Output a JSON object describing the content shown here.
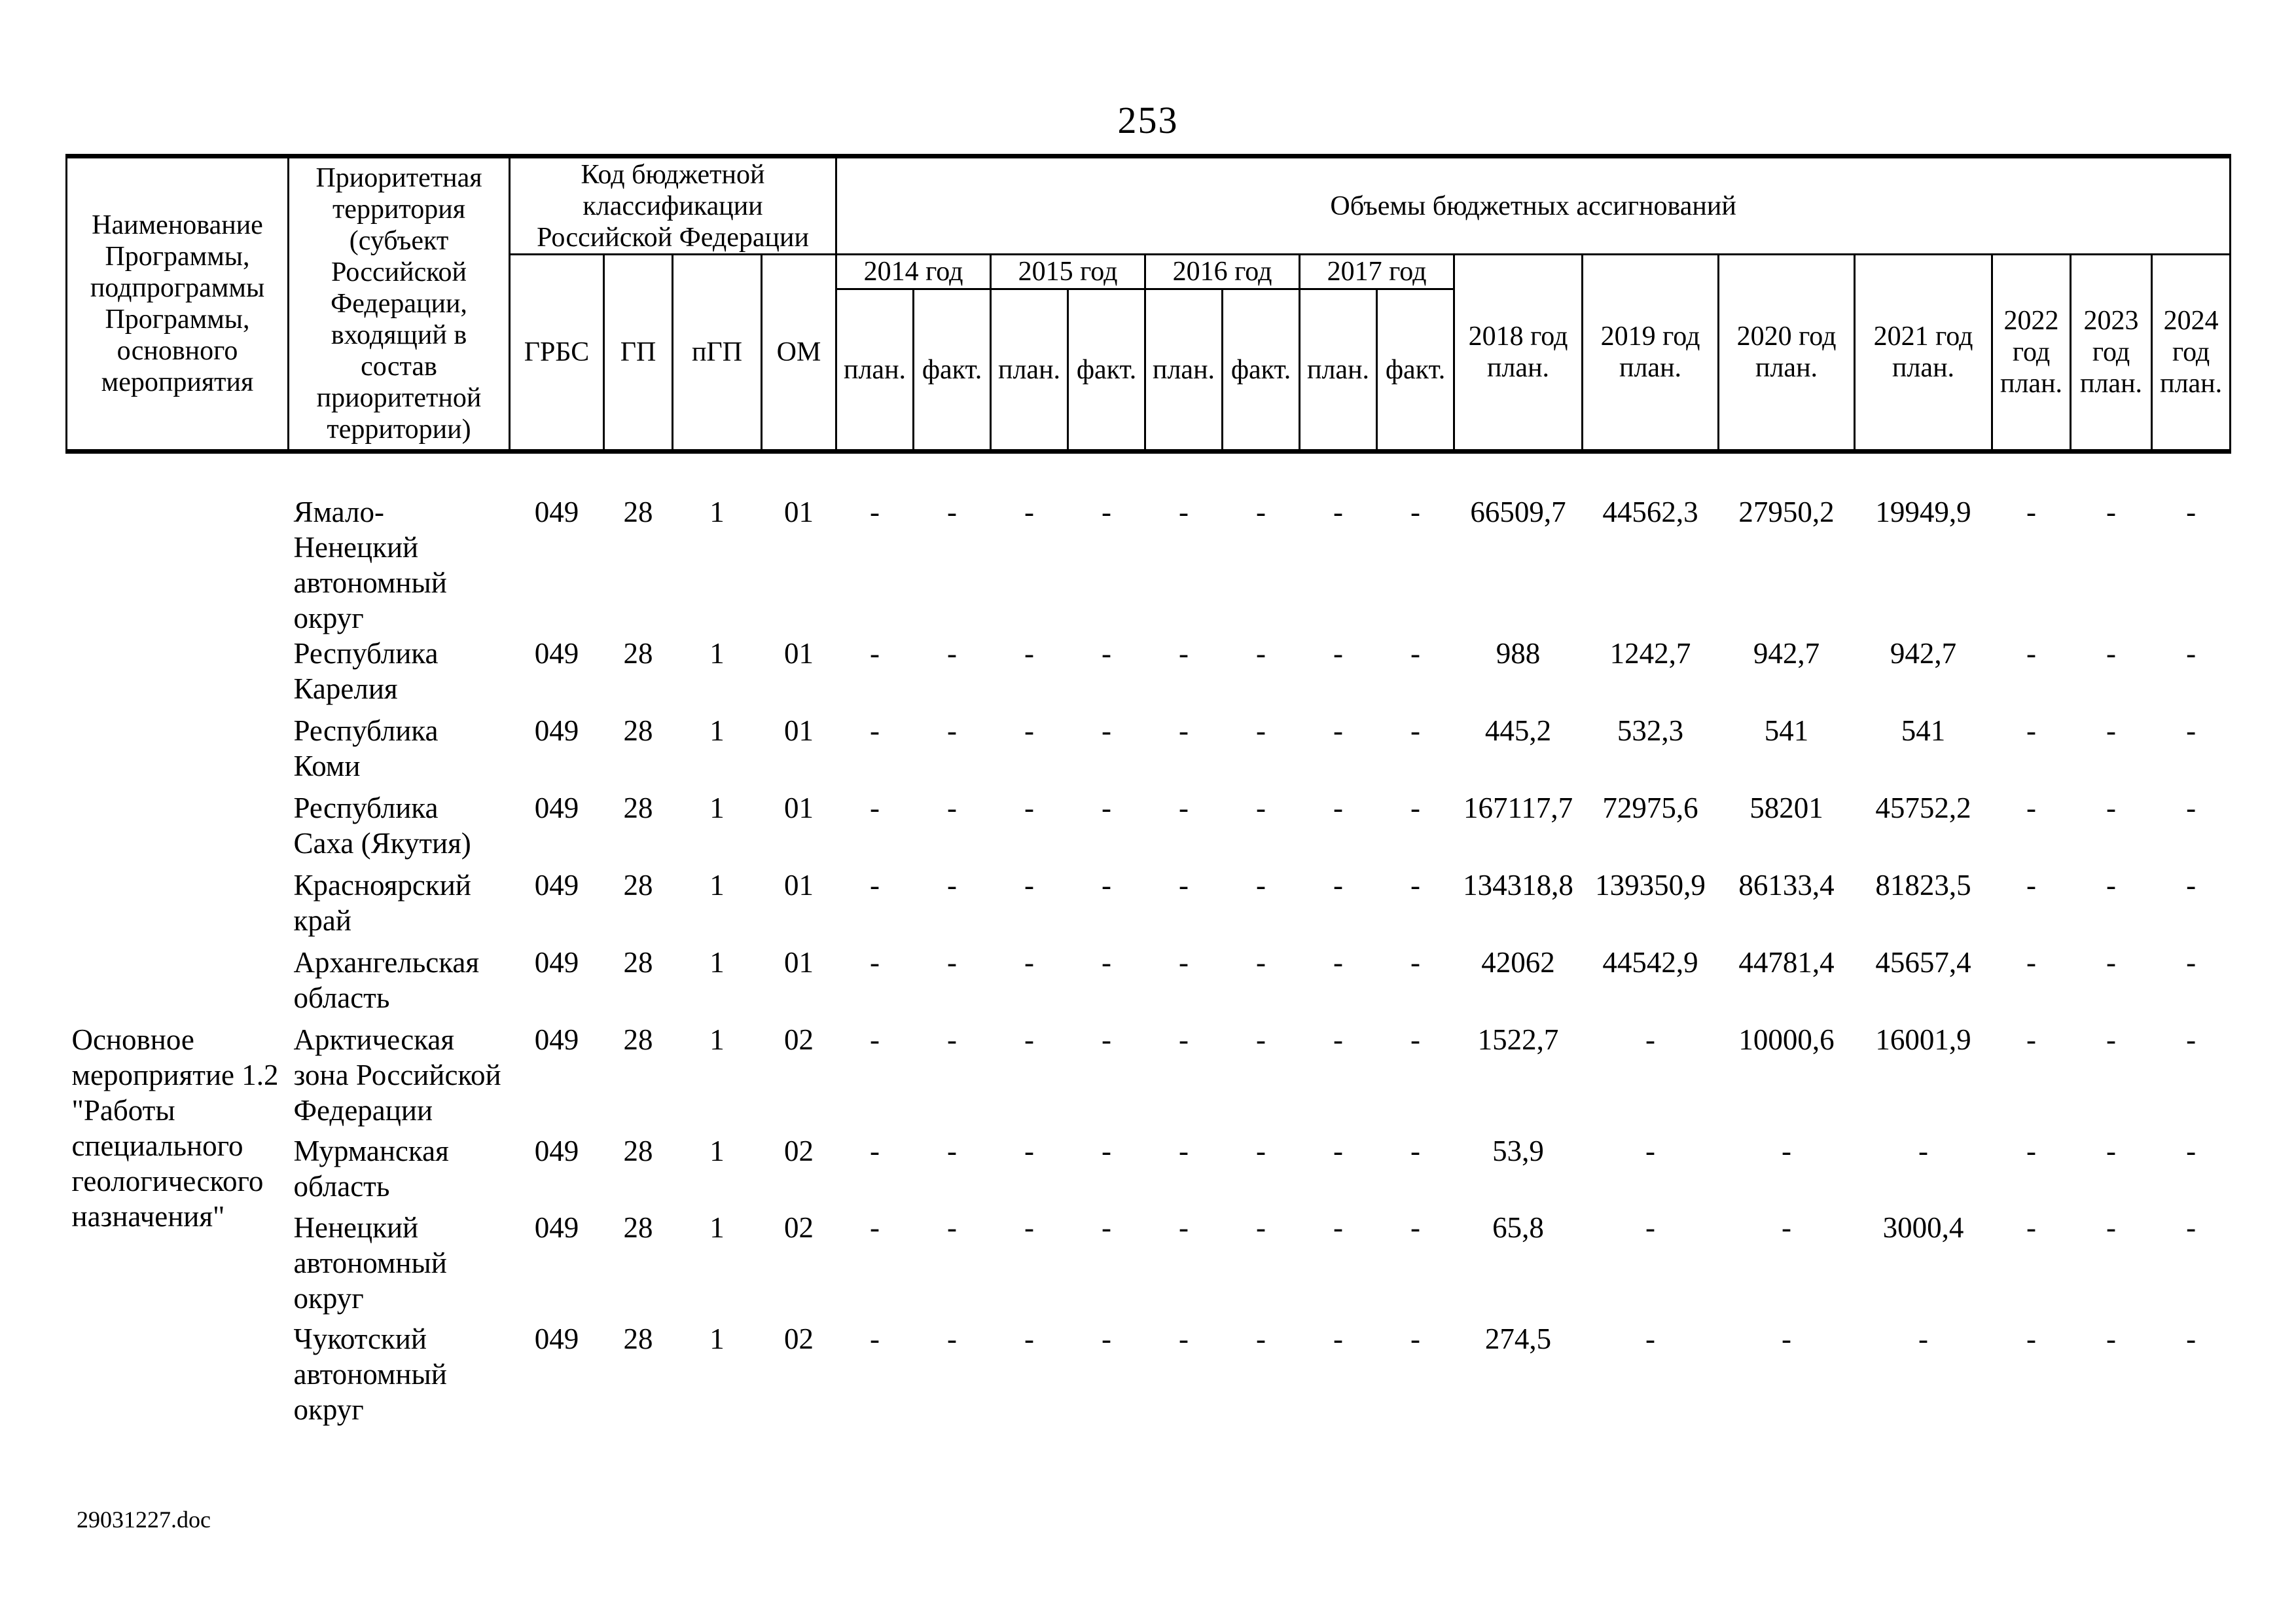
{
  "page": {
    "number": "253",
    "footer_filename": "29031227.doc"
  },
  "table": {
    "header": {
      "program": "Наименование\nПрограммы,\nподпрограммы\nПрограммы,\nосновного\nмероприятия",
      "territory": "Приоритетная\nтерритория\n(субъект\nРоссийской\nФедерации,\nвходящий в\nсостав\nприоритетной\nтерритории)",
      "budget_code": "Код бюджетной\nклассификации\nРоссийской Федерации",
      "volumes": "Объемы бюджетных ассигнований",
      "code_columns": [
        "ГРБС",
        "ГП",
        "пГП",
        "ОМ"
      ],
      "plan_fact_years": [
        "2014 год",
        "2015 год",
        "2016 год",
        "2017 год"
      ],
      "plan_label": "план.",
      "fact_label": "факт.",
      "plan_only_years": [
        "2018 год\nплан.",
        "2019 год\nплан.",
        "2020 год\nплан.",
        "2021 год\nплан.",
        "2022\nгод\nплан.",
        "2023\nгод\nплан.",
        "2024\nгод\nплан."
      ]
    },
    "rows": [
      {
        "program": "",
        "program_rowspan": 6,
        "territory": "Ямало-\nНенецкий\nавтономный\nокруг",
        "codes": [
          "049",
          "28",
          "1",
          "01"
        ],
        "plan_fact": [
          "-",
          "-",
          "-",
          "-",
          "-",
          "-",
          "-",
          "-"
        ],
        "values": [
          "66509,7",
          "44562,3",
          "27950,2",
          "19949,9",
          "-",
          "-",
          "-"
        ]
      },
      {
        "territory": "Республика\nКарелия",
        "codes": [
          "049",
          "28",
          "1",
          "01"
        ],
        "plan_fact": [
          "-",
          "-",
          "-",
          "-",
          "-",
          "-",
          "-",
          "-"
        ],
        "values": [
          "988",
          "1242,7",
          "942,7",
          "942,7",
          "-",
          "-",
          "-"
        ]
      },
      {
        "territory": "Республика\nКоми",
        "codes": [
          "049",
          "28",
          "1",
          "01"
        ],
        "plan_fact": [
          "-",
          "-",
          "-",
          "-",
          "-",
          "-",
          "-",
          "-"
        ],
        "values": [
          "445,2",
          "532,3",
          "541",
          "541",
          "-",
          "-",
          "-"
        ]
      },
      {
        "territory": "Республика\nСаха (Якутия)",
        "codes": [
          "049",
          "28",
          "1",
          "01"
        ],
        "plan_fact": [
          "-",
          "-",
          "-",
          "-",
          "-",
          "-",
          "-",
          "-"
        ],
        "values": [
          "167117,7",
          "72975,6",
          "58201",
          "45752,2",
          "-",
          "-",
          "-"
        ]
      },
      {
        "territory": "Красноярский\nкрай",
        "codes": [
          "049",
          "28",
          "1",
          "01"
        ],
        "plan_fact": [
          "-",
          "-",
          "-",
          "-",
          "-",
          "-",
          "-",
          "-"
        ],
        "values": [
          "134318,8",
          "139350,9",
          "86133,4",
          "81823,5",
          "-",
          "-",
          "-"
        ]
      },
      {
        "territory": "Архангельская\nобласть",
        "codes": [
          "049",
          "28",
          "1",
          "01"
        ],
        "plan_fact": [
          "-",
          "-",
          "-",
          "-",
          "-",
          "-",
          "-",
          "-"
        ],
        "values": [
          "42062",
          "44542,9",
          "44781,4",
          "45657,4",
          "-",
          "-",
          "-"
        ]
      },
      {
        "program": "Основное\nмероприятие 1.2\n\"Работы\nспециального\nгеологического\nназначения\"",
        "program_rowspan": 4,
        "territory": "Арктическая\nзона Российской\nФедерации",
        "codes": [
          "049",
          "28",
          "1",
          "02"
        ],
        "plan_fact": [
          "-",
          "-",
          "-",
          "-",
          "-",
          "-",
          "-",
          "-"
        ],
        "values": [
          "1522,7",
          "-",
          "10000,6",
          "16001,9",
          "-",
          "-",
          "-"
        ]
      },
      {
        "territory": "Мурманская\nобласть",
        "codes": [
          "049",
          "28",
          "1",
          "02"
        ],
        "plan_fact": [
          "-",
          "-",
          "-",
          "-",
          "-",
          "-",
          "-",
          "-"
        ],
        "values": [
          "53,9",
          "-",
          "-",
          "-",
          "-",
          "-",
          "-"
        ]
      },
      {
        "territory": "Ненецкий\nавтономный\nокруг",
        "codes": [
          "049",
          "28",
          "1",
          "02"
        ],
        "plan_fact": [
          "-",
          "-",
          "-",
          "-",
          "-",
          "-",
          "-",
          "-"
        ],
        "values": [
          "65,8",
          "-",
          "-",
          "3000,4",
          "-",
          "-",
          "-"
        ]
      },
      {
        "territory": "Чукотский\nавтономный\nокруг",
        "codes": [
          "049",
          "28",
          "1",
          "02"
        ],
        "plan_fact": [
          "-",
          "-",
          "-",
          "-",
          "-",
          "-",
          "-",
          "-"
        ],
        "values": [
          "274,5",
          "-",
          "-",
          "-",
          "-",
          "-",
          "-"
        ]
      }
    ]
  }
}
